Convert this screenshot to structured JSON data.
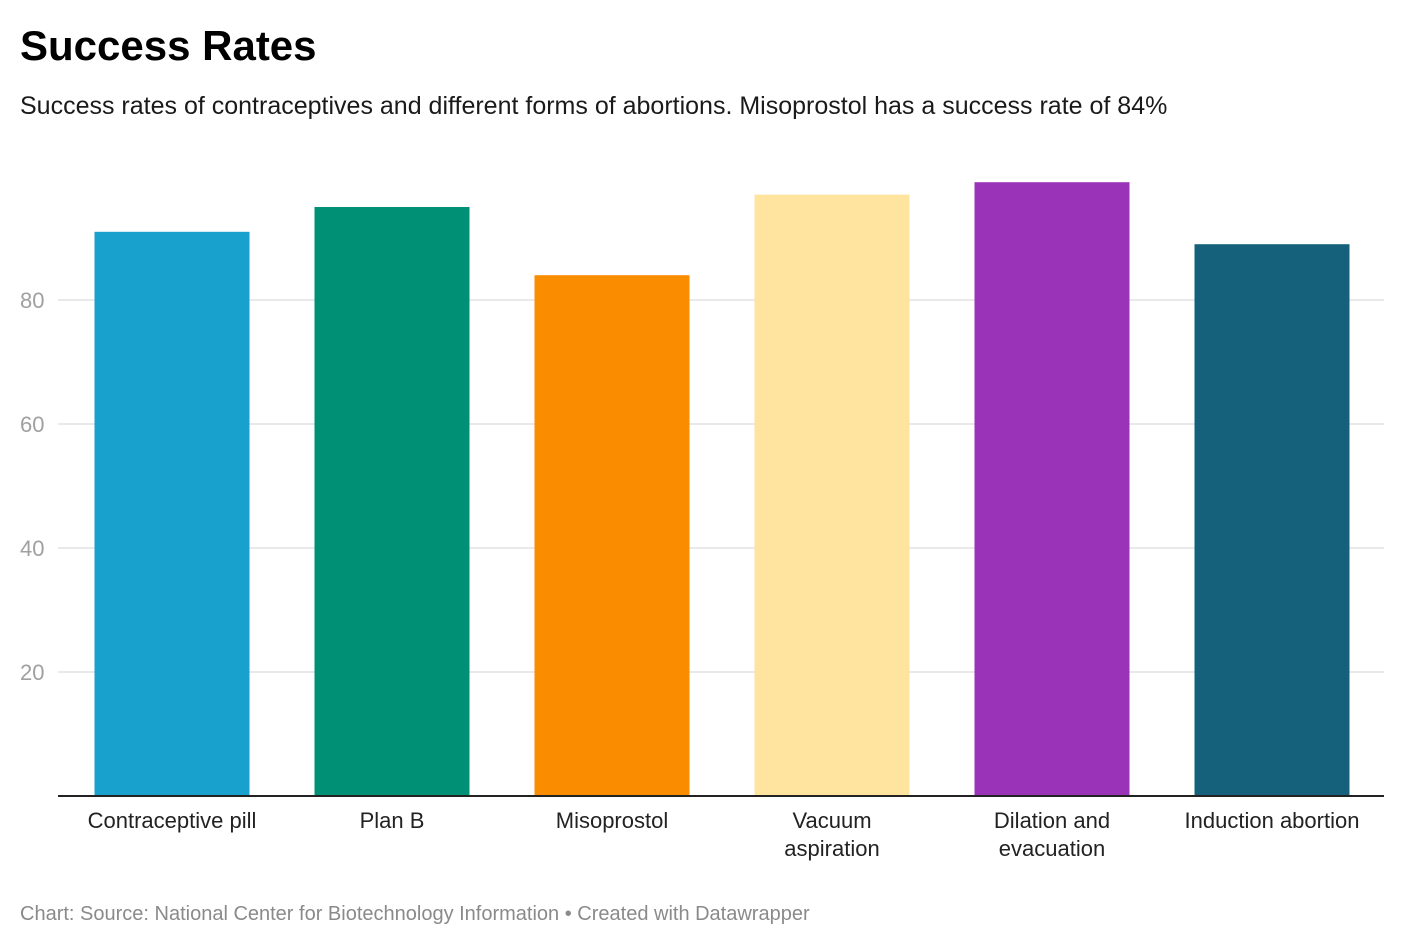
{
  "header": {
    "title": "Success Rates",
    "subtitle": "Success rates of contraceptives and different forms of abortions. Misoprostol has a success rate of 84%"
  },
  "footer": {
    "text": "Chart: Source: National Center for Biotechnology Information • Created with Datawrapper"
  },
  "chart_data": {
    "type": "bar",
    "title": "Success Rates",
    "subtitle": "Success rates of contraceptives and different forms of abortions. Misoprostol has a success rate of 84%",
    "xlabel": "",
    "ylabel": "",
    "categories": [
      "Contraceptive pill",
      "Plan B",
      "Misoprostol",
      "Vacuum aspiration",
      "Dilation and evacuation",
      "Induction abortion"
    ],
    "category_lines": [
      [
        "Contraceptive pill"
      ],
      [
        "Plan B"
      ],
      [
        "Misoprostol"
      ],
      [
        "Vacuum",
        "aspiration"
      ],
      [
        "Dilation and",
        "evacuation"
      ],
      [
        "Induction abortion"
      ]
    ],
    "values": [
      91,
      95,
      84,
      97,
      99,
      89
    ],
    "colors": [
      "#18a1cd",
      "#009076",
      "#fa8c00",
      "#fee49e",
      "#9b33b9",
      "#15607a"
    ],
    "ylim": [
      0,
      100
    ],
    "yticks": [
      20,
      40,
      60,
      80
    ],
    "grid": true,
    "legend": "none"
  }
}
